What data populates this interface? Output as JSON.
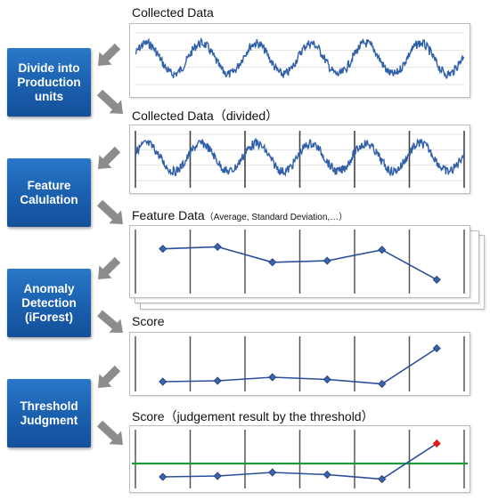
{
  "steps": [
    {
      "label": "Divide into\nProduction\nunits"
    },
    {
      "label": "Feature\nCalulation"
    },
    {
      "label": "Anomaly\nDetection\n(iForest)"
    },
    {
      "label": "Threshold\nJudgment"
    }
  ],
  "captions": {
    "collected": "Collected Data",
    "divided": "Collected Data（divided）",
    "feature_main": "Feature Data",
    "feature_sub": "（Average, Standard Deviation,…）",
    "score": "Score",
    "threshold": "Score（judgement result by the threshold）"
  },
  "colors": {
    "step_blue": "#1a62b0",
    "signal": "#2e5fa8",
    "line": "#2a4f9a",
    "marker": "#3a64a8",
    "threshold": "#1e9a3a",
    "anomaly": "#e01b1b",
    "arrow": "#8c8c8c"
  },
  "chart_data": [
    {
      "type": "line",
      "title": "Collected Data",
      "description_series": "noisy sine signal",
      "cycles": 6
    },
    {
      "type": "line",
      "title": "Collected Data（divided）",
      "cycles": 6,
      "divisions": 6
    },
    {
      "type": "line",
      "title": "Feature Data",
      "x": [
        1,
        2,
        3,
        4,
        5,
        6
      ],
      "values": [
        0.72,
        0.76,
        0.45,
        0.48,
        0.7,
        0.1
      ]
    },
    {
      "type": "line",
      "title": "Score",
      "x": [
        1,
        2,
        3,
        4,
        5,
        6
      ],
      "values": [
        0.1,
        0.12,
        0.2,
        0.15,
        0.05,
        0.85
      ]
    },
    {
      "type": "line",
      "title": "Score（judgement result by the threshold）",
      "x": [
        1,
        2,
        3,
        4,
        5,
        6
      ],
      "values": [
        0.1,
        0.12,
        0.2,
        0.15,
        0.05,
        0.85
      ],
      "threshold": 0.4,
      "anomaly_index": 5
    }
  ]
}
